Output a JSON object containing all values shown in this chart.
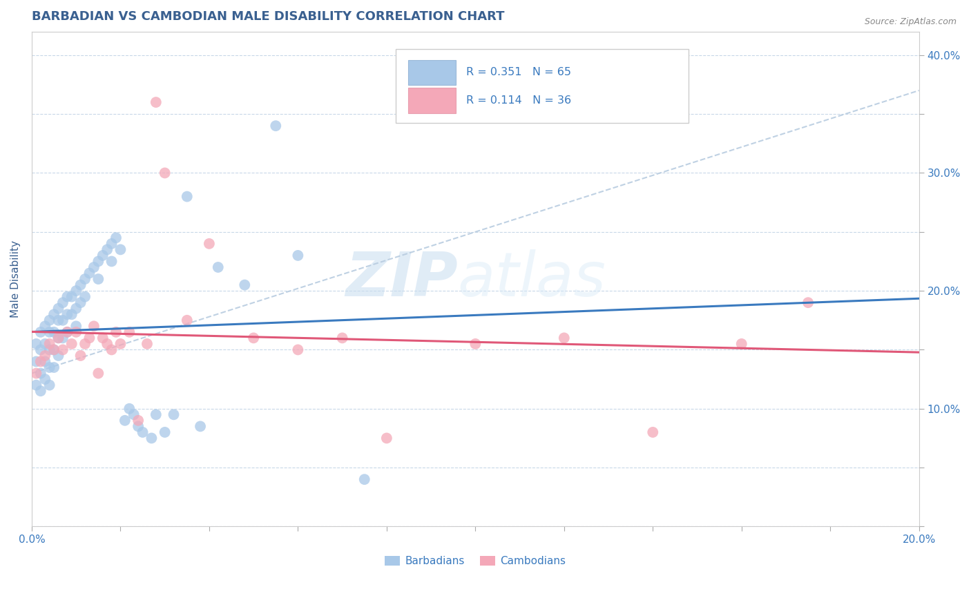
{
  "title": "BARBADIAN VS CAMBODIAN MALE DISABILITY CORRELATION CHART",
  "source": "Source: ZipAtlas.com",
  "ylabel": "Male Disability",
  "xlim": [
    0.0,
    0.2
  ],
  "ylim": [
    0.0,
    0.42
  ],
  "xticks": [
    0.0,
    0.02,
    0.04,
    0.06,
    0.08,
    0.1,
    0.12,
    0.14,
    0.16,
    0.18,
    0.2
  ],
  "yticks": [
    0.0,
    0.05,
    0.1,
    0.15,
    0.2,
    0.25,
    0.3,
    0.35,
    0.4
  ],
  "ytick_labels": [
    "",
    "",
    "10.0%",
    "",
    "20.0%",
    "",
    "30.0%",
    "",
    "40.0%"
  ],
  "xtick_labels": [
    "0.0%",
    "",
    "",
    "",
    "",
    "",
    "",
    "",
    "",
    "",
    "20.0%"
  ],
  "barbadian_color": "#a8c8e8",
  "cambodian_color": "#f4a8b8",
  "barbadian_line_color": "#3a7abf",
  "cambodian_line_color": "#e05878",
  "diag_line_color": "#b8cce0",
  "R_barbadian": 0.351,
  "N_barbadian": 65,
  "R_cambodian": 0.114,
  "N_cambodian": 36,
  "barbadian_scatter_x": [
    0.001,
    0.001,
    0.001,
    0.002,
    0.002,
    0.002,
    0.002,
    0.003,
    0.003,
    0.003,
    0.003,
    0.004,
    0.004,
    0.004,
    0.004,
    0.004,
    0.005,
    0.005,
    0.005,
    0.005,
    0.006,
    0.006,
    0.006,
    0.006,
    0.007,
    0.007,
    0.007,
    0.008,
    0.008,
    0.008,
    0.009,
    0.009,
    0.01,
    0.01,
    0.01,
    0.011,
    0.011,
    0.012,
    0.012,
    0.013,
    0.014,
    0.015,
    0.015,
    0.016,
    0.017,
    0.018,
    0.018,
    0.019,
    0.02,
    0.021,
    0.022,
    0.023,
    0.024,
    0.025,
    0.027,
    0.028,
    0.03,
    0.032,
    0.035,
    0.038,
    0.042,
    0.048,
    0.055,
    0.06,
    0.075
  ],
  "barbadian_scatter_y": [
    0.155,
    0.14,
    0.12,
    0.165,
    0.15,
    0.13,
    0.115,
    0.17,
    0.155,
    0.14,
    0.125,
    0.175,
    0.165,
    0.15,
    0.135,
    0.12,
    0.18,
    0.165,
    0.15,
    0.135,
    0.185,
    0.175,
    0.16,
    0.145,
    0.19,
    0.175,
    0.16,
    0.195,
    0.18,
    0.165,
    0.195,
    0.18,
    0.2,
    0.185,
    0.17,
    0.205,
    0.19,
    0.21,
    0.195,
    0.215,
    0.22,
    0.225,
    0.21,
    0.23,
    0.235,
    0.24,
    0.225,
    0.245,
    0.235,
    0.09,
    0.1,
    0.095,
    0.085,
    0.08,
    0.075,
    0.095,
    0.08,
    0.095,
    0.28,
    0.085,
    0.22,
    0.205,
    0.34,
    0.23,
    0.04
  ],
  "cambodian_scatter_x": [
    0.001,
    0.002,
    0.003,
    0.004,
    0.005,
    0.006,
    0.007,
    0.008,
    0.009,
    0.01,
    0.011,
    0.012,
    0.013,
    0.014,
    0.015,
    0.016,
    0.017,
    0.018,
    0.019,
    0.02,
    0.022,
    0.024,
    0.026,
    0.028,
    0.03,
    0.035,
    0.04,
    0.05,
    0.06,
    0.07,
    0.08,
    0.1,
    0.12,
    0.14,
    0.16,
    0.175
  ],
  "cambodian_scatter_y": [
    0.13,
    0.14,
    0.145,
    0.155,
    0.15,
    0.16,
    0.15,
    0.165,
    0.155,
    0.165,
    0.145,
    0.155,
    0.16,
    0.17,
    0.13,
    0.16,
    0.155,
    0.15,
    0.165,
    0.155,
    0.165,
    0.09,
    0.155,
    0.36,
    0.3,
    0.175,
    0.24,
    0.16,
    0.15,
    0.16,
    0.075,
    0.155,
    0.16,
    0.08,
    0.155,
    0.19
  ],
  "watermark_zip": "ZIP",
  "watermark_atlas": "atlas",
  "background_color": "#ffffff",
  "grid_color": "#c8d8e8",
  "title_color": "#3a6090",
  "axis_label_color": "#3a6090",
  "tick_color": "#3a7abf",
  "legend_text_color": "#3a7abf"
}
